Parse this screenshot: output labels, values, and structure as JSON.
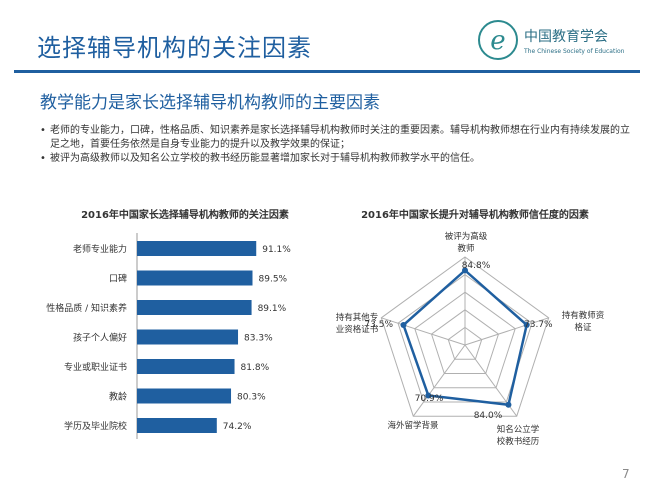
{
  "header": {
    "title": "选择辅导机构的关注因素",
    "logo_name": "中国教育学会",
    "logo_sub": "The Chinese Society of Education"
  },
  "subtitle": "教学能力是家长选择辅导机构教师的主要因素",
  "bullets": [
    "老师的专业能力，口碑，性格品质、知识素养是家长选择辅导机构教师时关注的重要因素。辅导机构教师想在行业内有持续发展的立足之地，首要任务依然是自身专业能力的提升以及教学效果的保证；",
    "被评为高级教师以及知名公立学校的教书经历能显著增加家长对于辅导机构教师教学水平的信任。"
  ],
  "page_number": "7",
  "colors": {
    "bar": "#1f5fa0",
    "radar": "#1f5fa0",
    "grid": "#b0b0b0"
  },
  "chart_data": [
    {
      "type": "bar",
      "orientation": "horizontal",
      "title": "2016年中国家长选择辅导机构教师的关注因素",
      "categories": [
        "老师专业能力",
        "口碑",
        "性格品质 / 知识素养",
        "孩子个人偏好",
        "专业或职业证书",
        "教龄",
        "学历及毕业院校"
      ],
      "values": [
        91.1,
        89.5,
        89.1,
        83.3,
        81.8,
        80.3,
        74.2
      ],
      "labels": [
        "91.1%",
        "89.5%",
        "89.1%",
        "83.3%",
        "81.8%",
        "80.3%",
        "74.2%"
      ],
      "unit": "%",
      "xlim": [
        40,
        100
      ]
    },
    {
      "type": "radar",
      "title": "2016年中国家长提升对辅导机构教师信任度的因素",
      "axes": [
        "被评为高级教师",
        "持有教师资格证",
        "知名公立学校教书经历",
        "海外留学背景",
        "持有其他专业资格证书"
      ],
      "values": [
        84.8,
        73.7,
        84.0,
        70.9,
        73.5
      ],
      "labels": [
        "84.8%",
        "73.7%",
        "84.0%",
        "70.9%",
        "73.5%"
      ],
      "unit": "%",
      "range": [
        0,
        100
      ]
    }
  ]
}
